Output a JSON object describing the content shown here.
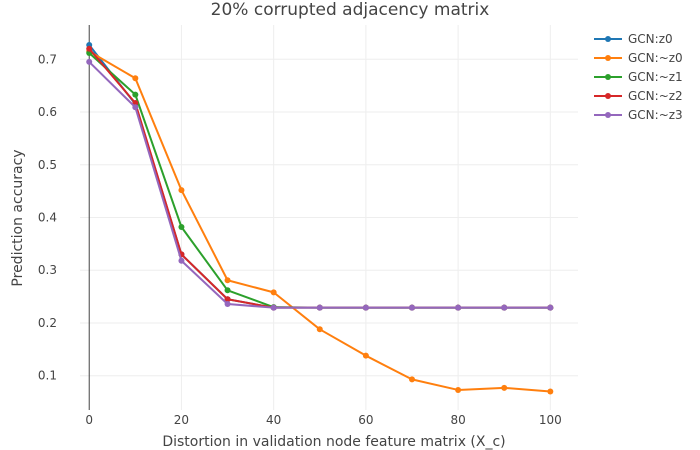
{
  "chart_data": {
    "type": "line",
    "title": "20% corrupted adjacency matrix",
    "xlabel": "Distortion in validation node feature matrix (X_c)",
    "ylabel": "Prediction accuracy",
    "x": [
      0,
      10,
      20,
      30,
      40,
      50,
      60,
      70,
      80,
      90,
      100
    ],
    "xlim": [
      -2,
      106
    ],
    "ylim": [
      0.035,
      0.765
    ],
    "xticks": [
      0,
      20,
      40,
      60,
      80,
      100
    ],
    "yticks": [
      0.1,
      0.2,
      0.3,
      0.4,
      0.5,
      0.6,
      0.7
    ],
    "xtick_labels": [
      "0",
      "20",
      "40",
      "60",
      "80",
      "100"
    ],
    "ytick_labels": [
      "0.1",
      "0.2",
      "0.3",
      "0.4",
      "0.5",
      "0.6",
      "0.7"
    ],
    "grid": true,
    "legend_position": "top-right",
    "series": [
      {
        "name": "GCN:z0",
        "color": "#1f77b4",
        "values": [
          0.727,
          0.615,
          0.33,
          0.245,
          0.229,
          0.229,
          0.229,
          0.229,
          0.229,
          0.229,
          0.229
        ]
      },
      {
        "name": "GCN:~z0",
        "color": "#ff7f0e",
        "values": [
          0.715,
          0.664,
          0.452,
          0.281,
          0.258,
          0.188,
          0.138,
          0.093,
          0.073,
          0.077,
          0.07
        ]
      },
      {
        "name": "GCN:~z1",
        "color": "#2ca02c",
        "values": [
          0.712,
          0.633,
          0.382,
          0.262,
          0.23,
          0.229,
          0.229,
          0.229,
          0.229,
          0.229,
          0.229
        ]
      },
      {
        "name": "GCN:~z2",
        "color": "#d62728",
        "values": [
          0.72,
          0.617,
          0.33,
          0.245,
          0.229,
          0.229,
          0.229,
          0.229,
          0.229,
          0.229,
          0.229
        ]
      },
      {
        "name": "GCN:~z3",
        "color": "#9467bd",
        "values": [
          0.695,
          0.609,
          0.318,
          0.236,
          0.229,
          0.229,
          0.229,
          0.229,
          0.229,
          0.229,
          0.229
        ]
      }
    ]
  }
}
